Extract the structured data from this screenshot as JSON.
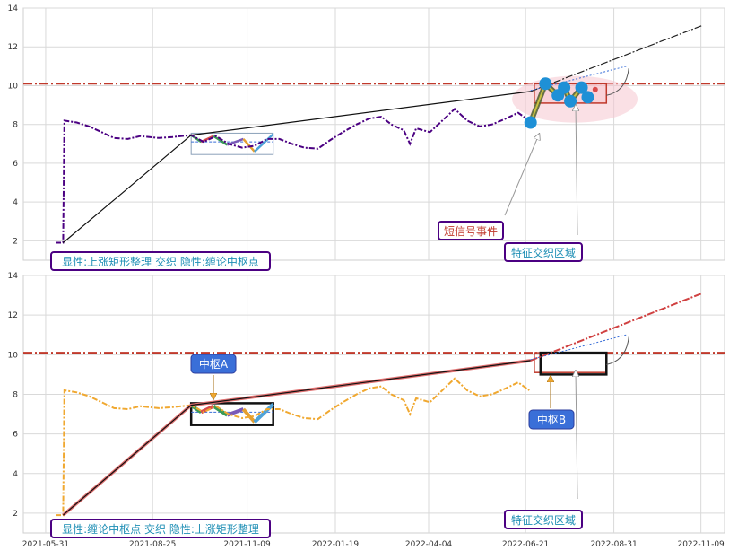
{
  "chart_data": [
    {
      "type": "line",
      "panel": "top",
      "ylim": [
        1,
        14
      ],
      "yticks": [
        2,
        4,
        6,
        8,
        10,
        12,
        14
      ],
      "grid": true,
      "horizontal_level": 10.1,
      "price_path": [
        [
          "2021-06-08",
          1.9
        ],
        [
          "2021-06-14",
          1.9
        ],
        [
          "2021-06-15",
          8.2
        ],
        [
          "2021-06-25",
          8.1
        ],
        [
          "2021-07-05",
          7.9
        ],
        [
          "2021-07-15",
          7.6
        ],
        [
          "2021-07-25",
          7.3
        ],
        [
          "2021-08-05",
          7.25
        ],
        [
          "2021-08-15",
          7.4
        ],
        [
          "2021-08-30",
          7.3
        ],
        [
          "2021-09-10",
          7.35
        ],
        [
          "2021-09-25",
          7.45
        ],
        [
          "2021-10-05",
          7.1
        ],
        [
          "2021-10-15",
          7.4
        ],
        [
          "2021-10-25",
          7.0
        ],
        [
          "2021-11-05",
          6.8
        ],
        [
          "2021-11-15",
          6.9
        ],
        [
          "2021-11-25",
          7.25
        ],
        [
          "2021-12-05",
          7.25
        ],
        [
          "2021-12-15",
          7.0
        ],
        [
          "2021-12-25",
          6.8
        ],
        [
          "2022-01-05",
          6.75
        ],
        [
          "2022-01-15",
          7.2
        ],
        [
          "2022-01-25",
          7.6
        ],
        [
          "2022-02-05",
          8.0
        ],
        [
          "2022-02-15",
          8.3
        ],
        [
          "2022-02-25",
          8.4
        ],
        [
          "2022-03-05",
          8.0
        ],
        [
          "2022-03-15",
          7.7
        ],
        [
          "2022-03-20",
          7.0
        ],
        [
          "2022-03-25",
          7.8
        ],
        [
          "2022-04-05",
          7.6
        ],
        [
          "2022-04-15",
          8.2
        ],
        [
          "2022-04-25",
          8.8
        ],
        [
          "2022-05-05",
          8.2
        ],
        [
          "2022-05-15",
          7.9
        ],
        [
          "2022-05-25",
          8.0
        ],
        [
          "2022-06-05",
          8.3
        ],
        [
          "2022-06-15",
          8.6
        ],
        [
          "2022-06-24",
          8.2
        ]
      ],
      "trend_line": [
        [
          "2021-06-14",
          1.9
        ],
        [
          "2021-09-25",
          7.45
        ],
        [
          "2022-06-25",
          9.7
        ]
      ],
      "projection_line": [
        [
          "2022-06-25",
          9.7
        ],
        [
          "2022-11-10",
          13.1
        ]
      ],
      "central_pivot": {
        "x0": "2021-09-25",
        "x1": "2021-11-30",
        "y0": 6.45,
        "y1": 7.55
      },
      "feature_zone": {
        "x0": "2022-06-28",
        "x1": "2022-08-25",
        "y0": 9.1,
        "y1": 10.1
      },
      "short_signal_points": [
        [
          "2022-06-25",
          8.1
        ],
        [
          "2022-07-07",
          10.1
        ],
        [
          "2022-07-17",
          9.5
        ],
        [
          "2022-07-22",
          9.9
        ],
        [
          "2022-07-27",
          9.2
        ],
        [
          "2022-08-05",
          9.9
        ],
        [
          "2022-08-10",
          9.4
        ]
      ]
    },
    {
      "type": "line",
      "panel": "bottom",
      "ylim": [
        1,
        14
      ],
      "yticks": [
        2,
        4,
        6,
        8,
        10,
        12,
        14
      ],
      "grid": true,
      "horizontal_level": 10.1,
      "price_path": [
        [
          "2021-06-08",
          1.9
        ],
        [
          "2021-06-14",
          1.9
        ],
        [
          "2021-06-15",
          8.2
        ],
        [
          "2021-06-25",
          8.1
        ],
        [
          "2021-07-05",
          7.9
        ],
        [
          "2021-07-15",
          7.6
        ],
        [
          "2021-07-25",
          7.3
        ],
        [
          "2021-08-05",
          7.25
        ],
        [
          "2021-08-15",
          7.4
        ],
        [
          "2021-08-30",
          7.3
        ],
        [
          "2021-09-10",
          7.35
        ],
        [
          "2021-09-25",
          7.45
        ],
        [
          "2021-10-05",
          7.1
        ],
        [
          "2021-10-15",
          7.4
        ],
        [
          "2021-10-25",
          7.0
        ],
        [
          "2021-11-05",
          6.8
        ],
        [
          "2021-11-15",
          6.9
        ],
        [
          "2021-11-25",
          7.25
        ],
        [
          "2021-12-05",
          7.25
        ],
        [
          "2021-12-15",
          7.0
        ],
        [
          "2021-12-25",
          6.8
        ],
        [
          "2022-01-05",
          6.75
        ],
        [
          "2022-01-15",
          7.2
        ],
        [
          "2022-01-25",
          7.6
        ],
        [
          "2022-02-05",
          8.0
        ],
        [
          "2022-02-15",
          8.3
        ],
        [
          "2022-02-25",
          8.4
        ],
        [
          "2022-03-05",
          8.0
        ],
        [
          "2022-03-15",
          7.7
        ],
        [
          "2022-03-20",
          7.0
        ],
        [
          "2022-03-25",
          7.8
        ],
        [
          "2022-04-05",
          7.6
        ],
        [
          "2022-04-15",
          8.2
        ],
        [
          "2022-04-25",
          8.8
        ],
        [
          "2022-05-05",
          8.2
        ],
        [
          "2022-05-15",
          7.9
        ],
        [
          "2022-05-25",
          8.0
        ],
        [
          "2022-06-05",
          8.3
        ],
        [
          "2022-06-15",
          8.6
        ],
        [
          "2022-06-24",
          8.2
        ]
      ],
      "trend_line": [
        [
          "2021-06-14",
          1.9
        ],
        [
          "2021-09-25",
          7.45
        ],
        [
          "2022-06-25",
          9.7
        ]
      ],
      "projection_line": [
        [
          "2022-06-25",
          9.7
        ],
        [
          "2022-11-10",
          13.1
        ]
      ],
      "central_pivot": {
        "x0": "2021-09-25",
        "x1": "2021-11-30",
        "y0": 6.45,
        "y1": 7.55
      },
      "feature_zone": {
        "x0": "2022-06-28",
        "x1": "2022-08-25",
        "y0": 9.1,
        "y1": 10.1
      }
    }
  ],
  "x_ticks": [
    "2021-05-31",
    "2021-08-25",
    "2021-11-09",
    "2022-01-19",
    "2022-04-04",
    "2022-06-21",
    "2022-08-31",
    "2022-11-09"
  ],
  "top_panel": {
    "explicit_label": "显性:上涨矩形整理 交织 隐性:缠论中枢点",
    "short_signal_label": "短信号事件",
    "feature_zone_label": "特征交织区域"
  },
  "bottom_panel": {
    "explicit_label": "显性:缠论中枢点 交织 隐性:上涨矩形整理",
    "pivot_a_label": "中枢A",
    "pivot_b_label": "中枢B",
    "feature_zone_label": "特征交织区域"
  },
  "colors": {
    "top_price": "#4b0082",
    "bottom_price": "#f0a830",
    "level_line": "#c0392b",
    "grid": "#d9d9d9",
    "label_border": "#4b0082",
    "label_text_teal": "#1f8fb5",
    "label_text_red": "#c0392b",
    "pivot_box_fill": "#3a6fd8",
    "signal_dot": "#1e90d6"
  }
}
